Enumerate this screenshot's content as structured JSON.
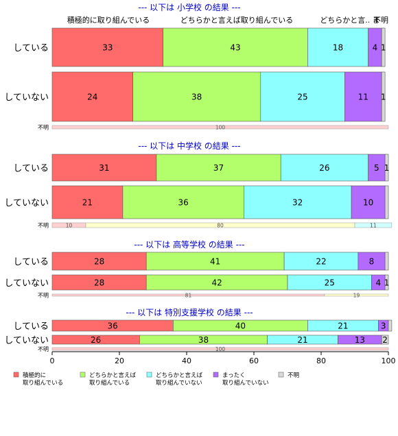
{
  "colors": {
    "c1": "#ff6b6b",
    "c2": "#b3ff6b",
    "c3": "#8effff",
    "c4": "#b36bff",
    "c5": "#d9d9d9",
    "title": "#0000cc"
  },
  "chart_data": {
    "type": "bar",
    "orientation": "horizontal",
    "stacked": "percent",
    "xlim": [
      0,
      100
    ],
    "xticks": [
      "0",
      "20",
      "40",
      "60",
      "80",
      "100"
    ],
    "top_headers": [
      "積極的に取り組んでいる",
      "どちらかと言えば取り組んでいる",
      "どちらかと言.. ま",
      "不明"
    ],
    "legend": [
      {
        "key": "c1",
        "label": [
          "積極的に",
          "取り組んでいる"
        ]
      },
      {
        "key": "c2",
        "label": [
          "どちらかと言えば",
          "取り組んでいる"
        ]
      },
      {
        "key": "c3",
        "label": [
          "どちらかと言えば",
          "取り組んでいない"
        ]
      },
      {
        "key": "c4",
        "label": [
          "まったく",
          "取り組んでいない"
        ]
      },
      {
        "key": "c5",
        "label": [
          "不明"
        ]
      }
    ],
    "groups": [
      {
        "title": "--- 以下は 小学校 の結果 ---",
        "bars": [
          {
            "label": "している",
            "values": [
              33,
              43,
              18,
              4,
              1
            ],
            "labels": [
              "33",
              "43",
              "18",
              "4",
              "1"
            ]
          },
          {
            "label": "していない",
            "values": [
              24,
              38,
              25,
              11,
              1
            ],
            "labels": [
              "24",
              "38",
              "25",
              "11",
              "1"
            ]
          }
        ],
        "unknown_row": {
          "label": "不明",
          "values": [
            100
          ],
          "labels": [
            "100"
          ]
        }
      },
      {
        "title": "--- 以下は 中学校 の結果 ---",
        "bars": [
          {
            "label": "している",
            "values": [
              31,
              37,
              26,
              5,
              1
            ],
            "labels": [
              "31",
              "37",
              "26",
              "5",
              "1"
            ]
          },
          {
            "label": "していない",
            "values": [
              21,
              36,
              32,
              10,
              1
            ],
            "labels": [
              "21",
              "36",
              "32",
              "10",
              ""
            ]
          }
        ],
        "unknown_row": {
          "label": "不明",
          "values": [
            10,
            80,
            11
          ],
          "labels": [
            "10",
            "80",
            "11"
          ]
        }
      },
      {
        "title": "--- 以下は 高等学校 の結果 ---",
        "bars": [
          {
            "label": "している",
            "values": [
              28,
              41,
              22,
              8,
              1
            ],
            "labels": [
              "28",
              "41",
              "22",
              "8",
              ""
            ]
          },
          {
            "label": "していない",
            "values": [
              28,
              42,
              25,
              4,
              1
            ],
            "labels": [
              "28",
              "42",
              "25",
              "4",
              "1"
            ]
          }
        ],
        "unknown_row": {
          "label": "不明",
          "values": [
            81,
            19
          ],
          "labels": [
            "81",
            "19"
          ]
        }
      },
      {
        "title": "--- 以下は 特別支援学校 の結果 ---",
        "bars": [
          {
            "label": "している",
            "values": [
              36,
              40,
              21,
              3,
              1
            ],
            "labels": [
              "36",
              "40",
              "21",
              "3",
              ""
            ]
          },
          {
            "label": "していない",
            "values": [
              26,
              38,
              21,
              13,
              2
            ],
            "labels": [
              "26",
              "38",
              "21",
              "13",
              "2"
            ]
          }
        ],
        "unknown_row": {
          "label": "不明",
          "values": [
            100
          ],
          "labels": [
            "100"
          ]
        }
      }
    ]
  }
}
